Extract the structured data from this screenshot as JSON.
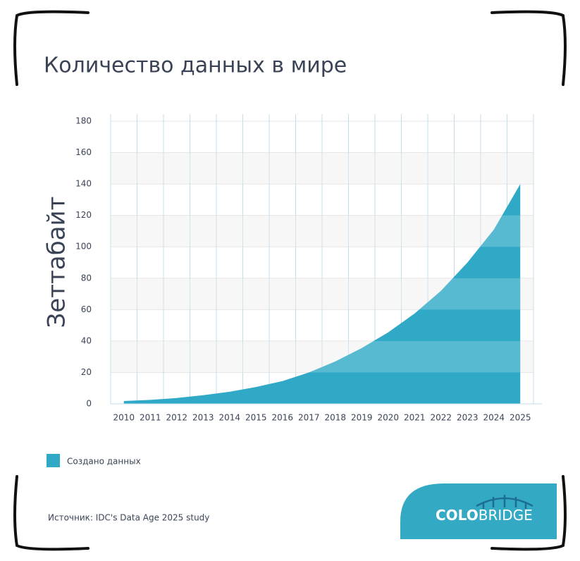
{
  "chart_data": {
    "type": "area",
    "title": "Количество данных в мире",
    "y_label": "Зеттабайт",
    "categories": [
      "2010",
      "2011",
      "2012",
      "2013",
      "2014",
      "2015",
      "2016",
      "2017",
      "2018",
      "2019",
      "2020",
      "2021",
      "2022",
      "2023",
      "2024",
      "2025"
    ],
    "series": [
      {
        "name": "Создано данных",
        "color": "#2fa9c6",
        "values": [
          1.8,
          2.5,
          3.7,
          5.5,
          7.7,
          10.7,
          14.5,
          20,
          27,
          35.5,
          45.5,
          57.5,
          72,
          90,
          111,
          140
        ]
      }
    ],
    "ylim": [
      0,
      180
    ],
    "yticks": [
      0,
      20,
      40,
      60,
      80,
      100,
      120,
      140,
      160,
      180
    ],
    "grid": true,
    "legend": "bottom-left"
  },
  "source": "Источник: IDC's Data Age 2025 study",
  "logo": [
    "COLO",
    "BRIDGE"
  ]
}
